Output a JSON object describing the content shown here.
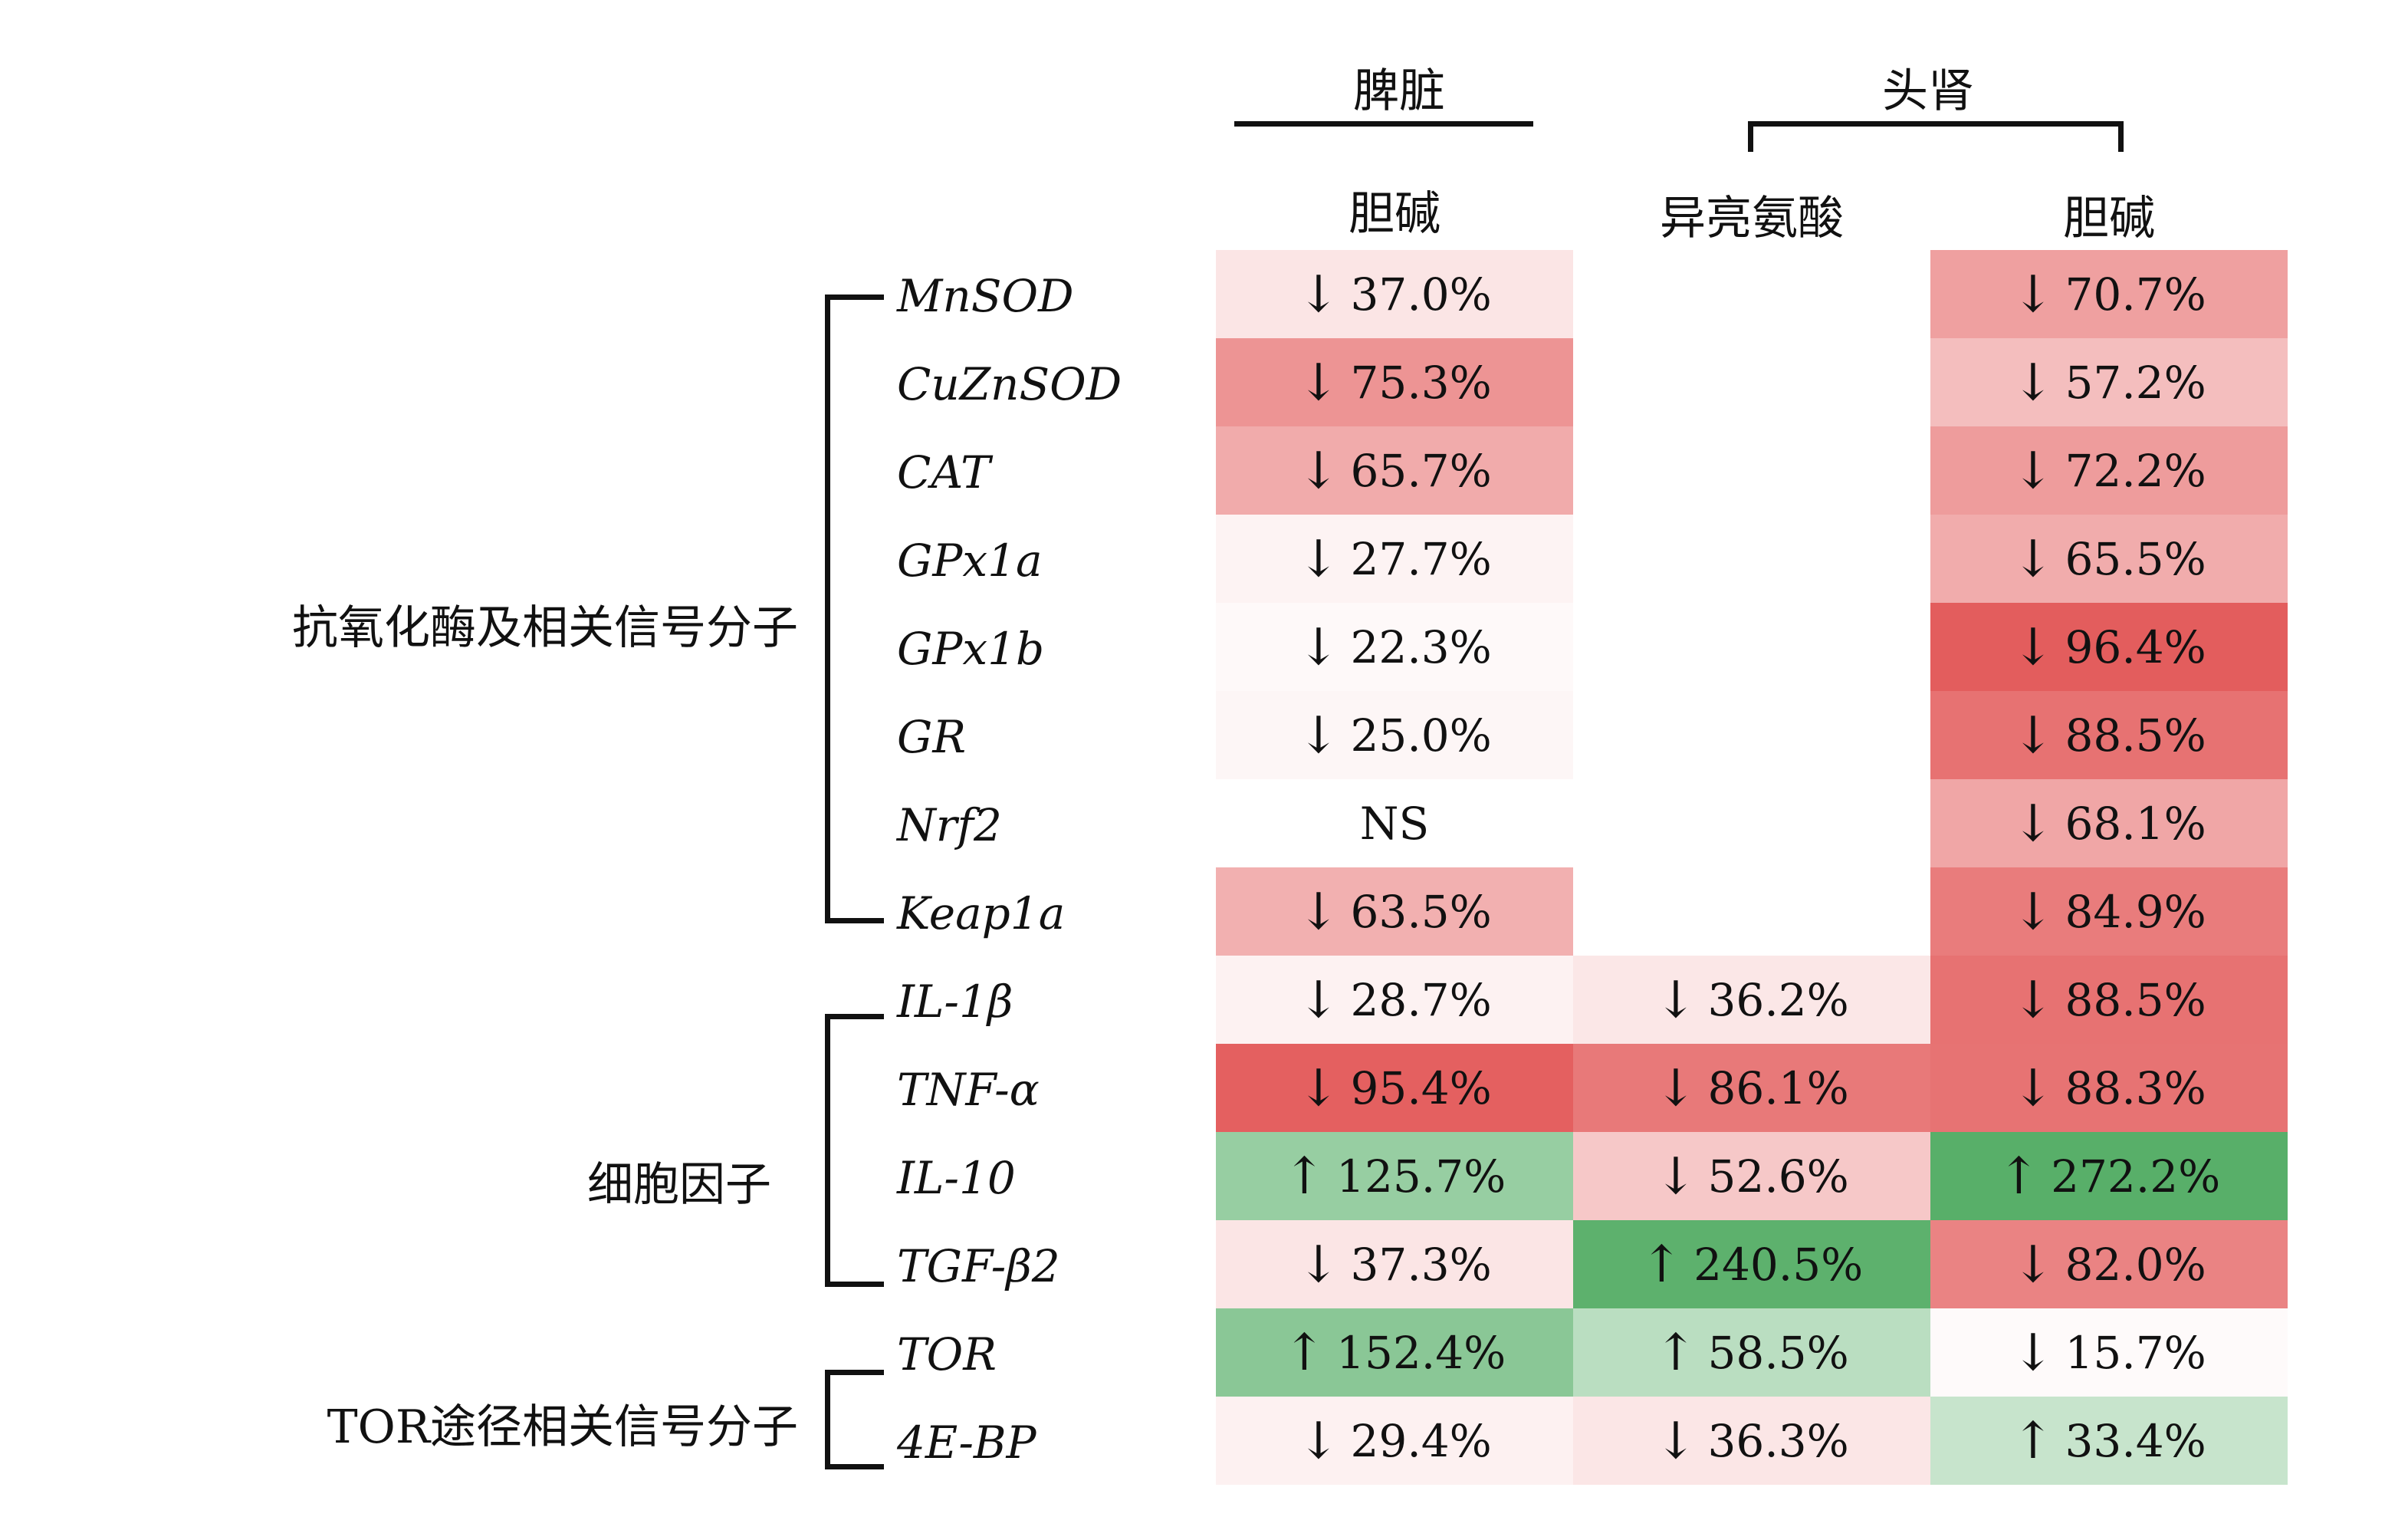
{
  "header": {
    "tissues": [
      "脾脏",
      "头肾"
    ],
    "treatments": [
      "胆碱",
      "异亮氨酸",
      "胆碱"
    ]
  },
  "groups": [
    {
      "label": "抗氧化酶及相关信号分子",
      "rows": [
        0,
        7
      ]
    },
    {
      "label": "细胞因子",
      "rows": [
        8,
        11
      ]
    },
    {
      "label": "TOR途径相关信号分子",
      "rows": [
        12,
        13
      ]
    }
  ],
  "chart_data": {
    "type": "table",
    "columns": [
      "脾脏 胆碱",
      "头肾 异亮氨酸",
      "头肾 胆碱"
    ],
    "rows": [
      {
        "gene": "MnSOD",
        "cells": [
          {
            "text": "37.0%",
            "dir": "down",
            "v": 37.0
          },
          null,
          {
            "text": "70.7%",
            "dir": "down",
            "v": 70.7
          }
        ]
      },
      {
        "gene": "CuZnSOD",
        "cells": [
          {
            "text": "75.3%",
            "dir": "down",
            "v": 75.3
          },
          null,
          {
            "text": "57.2%",
            "dir": "down",
            "v": 57.2
          }
        ]
      },
      {
        "gene": "CAT",
        "cells": [
          {
            "text": "65.7%",
            "dir": "down",
            "v": 65.7
          },
          null,
          {
            "text": "72.2%",
            "dir": "down",
            "v": 72.2
          }
        ]
      },
      {
        "gene": "GPx1a",
        "cells": [
          {
            "text": "27.7%",
            "dir": "down",
            "v": 27.7
          },
          null,
          {
            "text": "65.5%",
            "dir": "down",
            "v": 65.5
          }
        ]
      },
      {
        "gene": "GPx1b",
        "cells": [
          {
            "text": "22.3%",
            "dir": "down",
            "v": 22.3
          },
          null,
          {
            "text": "96.4%",
            "dir": "down",
            "v": 96.4
          }
        ]
      },
      {
        "gene": "GR",
        "cells": [
          {
            "text": "25.0%",
            "dir": "down",
            "v": 25.0
          },
          null,
          {
            "text": "88.5%",
            "dir": "down",
            "v": 88.5
          }
        ]
      },
      {
        "gene": "Nrf2",
        "cells": [
          {
            "text": "NS",
            "dir": "none",
            "v": 0
          },
          null,
          {
            "text": "68.1%",
            "dir": "down",
            "v": 68.1
          }
        ]
      },
      {
        "gene": "Keap1a",
        "cells": [
          {
            "text": "63.5%",
            "dir": "down",
            "v": 63.5
          },
          null,
          {
            "text": "84.9%",
            "dir": "down",
            "v": 84.9
          }
        ]
      },
      {
        "gene": "IL-1β",
        "cells": [
          {
            "text": "28.7%",
            "dir": "down",
            "v": 28.7
          },
          {
            "text": "36.2%",
            "dir": "down",
            "v": 36.2
          },
          {
            "text": "88.5%",
            "dir": "down",
            "v": 88.5
          }
        ]
      },
      {
        "gene": "TNF-α",
        "cells": [
          {
            "text": "95.4%",
            "dir": "down",
            "v": 95.4
          },
          {
            "text": "86.1%",
            "dir": "down",
            "v": 86.1
          },
          {
            "text": "88.3%",
            "dir": "down",
            "v": 88.3
          }
        ]
      },
      {
        "gene": "IL-10",
        "cells": [
          {
            "text": "125.7%",
            "dir": "up",
            "v": 125.7
          },
          {
            "text": "52.6%",
            "dir": "down",
            "v": 52.6
          },
          {
            "text": "272.2%",
            "dir": "up",
            "v": 272.2
          }
        ]
      },
      {
        "gene": "TGF-β2",
        "cells": [
          {
            "text": "37.3%",
            "dir": "down",
            "v": 37.3
          },
          {
            "text": "240.5%",
            "dir": "up",
            "v": 240.5
          },
          {
            "text": "82.0%",
            "dir": "down",
            "v": 82.0
          }
        ]
      },
      {
        "gene": "TOR",
        "cells": [
          {
            "text": "152.4%",
            "dir": "up",
            "v": 152.4
          },
          {
            "text": "58.5%",
            "dir": "up",
            "v": 58.5
          },
          {
            "text": "15.7%",
            "dir": "down",
            "v": 15.7
          }
        ]
      },
      {
        "gene": "4E-BP",
        "cells": [
          {
            "text": "29.4%",
            "dir": "down",
            "v": 29.4
          },
          {
            "text": "36.3%",
            "dir": "down",
            "v": 36.3
          },
          {
            "text": "33.4%",
            "dir": "up",
            "v": 33.4
          }
        ]
      }
    ],
    "arrows": {
      "down": "↓",
      "up": "↑"
    },
    "colors": {
      "down_max": "#e25555",
      "up_max": "#4daa5f",
      "neutral": "#ffffff"
    }
  }
}
